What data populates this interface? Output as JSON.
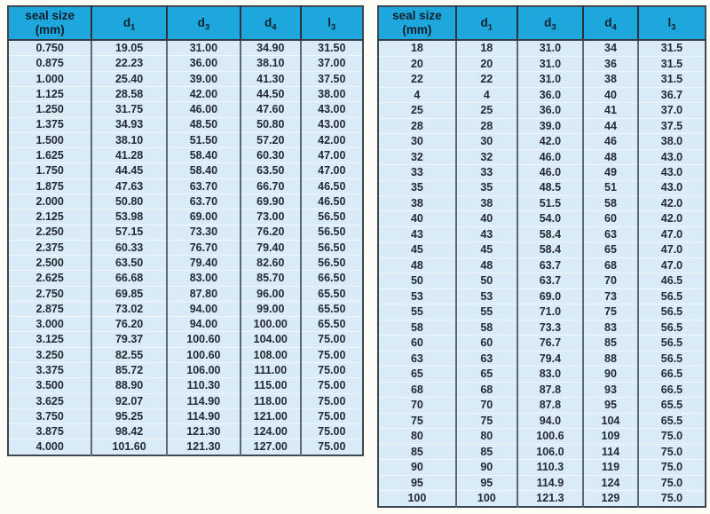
{
  "colors": {
    "header_bg": "#1ea7dd",
    "header_text": "#13202c",
    "row_bg": "#d9ebf7",
    "cell_text": "#232a33",
    "grid_dark": "#5c6775",
    "row_divider": "#eef6fb",
    "outer_border": "#3e4854",
    "page_bg": "#fdfdf6"
  },
  "tables": [
    {
      "name": "seal-size-table-inch-series",
      "headers": [
        {
          "label": "seal size",
          "line2": "(mm)"
        },
        {
          "label": "d",
          "sub": "1"
        },
        {
          "label": "d",
          "sub": "3"
        },
        {
          "label": "d",
          "sub": "4"
        },
        {
          "label": "l",
          "sub": "3"
        }
      ],
      "rows": [
        [
          "0.750",
          "19.05",
          "31.00",
          "34.90",
          "31.50"
        ],
        [
          "0.875",
          "22.23",
          "36.00",
          "38.10",
          "37.00"
        ],
        [
          "1.000",
          "25.40",
          "39.00",
          "41.30",
          "37.50"
        ],
        [
          "1.125",
          "28.58",
          "42.00",
          "44.50",
          "38.00"
        ],
        [
          "1.250",
          "31.75",
          "46.00",
          "47.60",
          "43.00"
        ],
        [
          "1.375",
          "34.93",
          "48.50",
          "50.80",
          "43.00"
        ],
        [
          "1.500",
          "38.10",
          "51.50",
          "57.20",
          "42.00"
        ],
        [
          "1.625",
          "41.28",
          "58.40",
          "60.30",
          "47.00"
        ],
        [
          "1.750",
          "44.45",
          "58.40",
          "63.50",
          "47.00"
        ],
        [
          "1.875",
          "47.63",
          "63.70",
          "66.70",
          "46.50"
        ],
        [
          "2.000",
          "50.80",
          "63.70",
          "69.90",
          "46.50"
        ],
        [
          "2.125",
          "53.98",
          "69.00",
          "73.00",
          "56.50"
        ],
        [
          "2.250",
          "57.15",
          "73.30",
          "76.20",
          "56.50"
        ],
        [
          "2.375",
          "60.33",
          "76.70",
          "79.40",
          "56.50"
        ],
        [
          "2.500",
          "63.50",
          "79.40",
          "82.60",
          "56.50"
        ],
        [
          "2.625",
          "66.68",
          "83.00",
          "85.70",
          "66.50"
        ],
        [
          "2.750",
          "69.85",
          "87.80",
          "96.00",
          "65.50"
        ],
        [
          "2.875",
          "73.02",
          "94.00",
          "99.00",
          "65.50"
        ],
        [
          "3.000",
          "76.20",
          "94.00",
          "100.00",
          "65.50"
        ],
        [
          "3.125",
          "79.37",
          "100.60",
          "104.00",
          "75.00"
        ],
        [
          "3.250",
          "82.55",
          "100.60",
          "108.00",
          "75.00"
        ],
        [
          "3.375",
          "85.72",
          "106.00",
          "111.00",
          "75.00"
        ],
        [
          "3.500",
          "88.90",
          "110.30",
          "115.00",
          "75.00"
        ],
        [
          "3.625",
          "92.07",
          "114.90",
          "118.00",
          "75.00"
        ],
        [
          "3.750",
          "95.25",
          "114.90",
          "121.00",
          "75.00"
        ],
        [
          "3.875",
          "98.42",
          "121.30",
          "124.00",
          "75.00"
        ],
        [
          "4.000",
          "101.60",
          "121.30",
          "127.00",
          "75.00"
        ]
      ]
    },
    {
      "name": "seal-size-table-metric-series",
      "headers": [
        {
          "label": "seal size",
          "line2": "(mm)"
        },
        {
          "label": "d",
          "sub": "1"
        },
        {
          "label": "d",
          "sub": "3"
        },
        {
          "label": "d",
          "sub": "4"
        },
        {
          "label": "l",
          "sub": "3"
        }
      ],
      "rows": [
        [
          "18",
          "18",
          "31.0",
          "34",
          "31.5"
        ],
        [
          "20",
          "20",
          "31.0",
          "36",
          "31.5"
        ],
        [
          "22",
          "22",
          "31.0",
          "38",
          "31.5"
        ],
        [
          "4",
          "4",
          "36.0",
          "40",
          "36.7"
        ],
        [
          "25",
          "25",
          "36.0",
          "41",
          "37.0"
        ],
        [
          "28",
          "28",
          "39.0",
          "44",
          "37.5"
        ],
        [
          "30",
          "30",
          "42.0",
          "46",
          "38.0"
        ],
        [
          "32",
          "32",
          "46.0",
          "48",
          "43.0"
        ],
        [
          "33",
          "33",
          "46.0",
          "49",
          "43.0"
        ],
        [
          "35",
          "35",
          "48.5",
          "51",
          "43.0"
        ],
        [
          "38",
          "38",
          "51.5",
          "58",
          "42.0"
        ],
        [
          "40",
          "40",
          "54.0",
          "60",
          "42.0"
        ],
        [
          "43",
          "43",
          "58.4",
          "63",
          "47.0"
        ],
        [
          "45",
          "45",
          "58.4",
          "65",
          "47.0"
        ],
        [
          "48",
          "48",
          "63.7",
          "68",
          "47.0"
        ],
        [
          "50",
          "50",
          "63.7",
          "70",
          "46.5"
        ],
        [
          "53",
          "53",
          "69.0",
          "73",
          "56.5"
        ],
        [
          "55",
          "55",
          "71.0",
          "75",
          "56.5"
        ],
        [
          "58",
          "58",
          "73.3",
          "83",
          "56.5"
        ],
        [
          "60",
          "60",
          "76.7",
          "85",
          "56.5"
        ],
        [
          "63",
          "63",
          "79.4",
          "88",
          "56.5"
        ],
        [
          "65",
          "65",
          "83.0",
          "90",
          "66.5"
        ],
        [
          "68",
          "68",
          "87.8",
          "93",
          "66.5"
        ],
        [
          "70",
          "70",
          "87.8",
          "95",
          "65.5"
        ],
        [
          "75",
          "75",
          "94.0",
          "104",
          "65.5"
        ],
        [
          "80",
          "80",
          "100.6",
          "109",
          "75.0"
        ],
        [
          "85",
          "85",
          "106.0",
          "114",
          "75.0"
        ],
        [
          "90",
          "90",
          "110.3",
          "119",
          "75.0"
        ],
        [
          "95",
          "95",
          "114.9",
          "124",
          "75.0"
        ],
        [
          "100",
          "100",
          "121.3",
          "129",
          "75.0"
        ]
      ]
    }
  ]
}
